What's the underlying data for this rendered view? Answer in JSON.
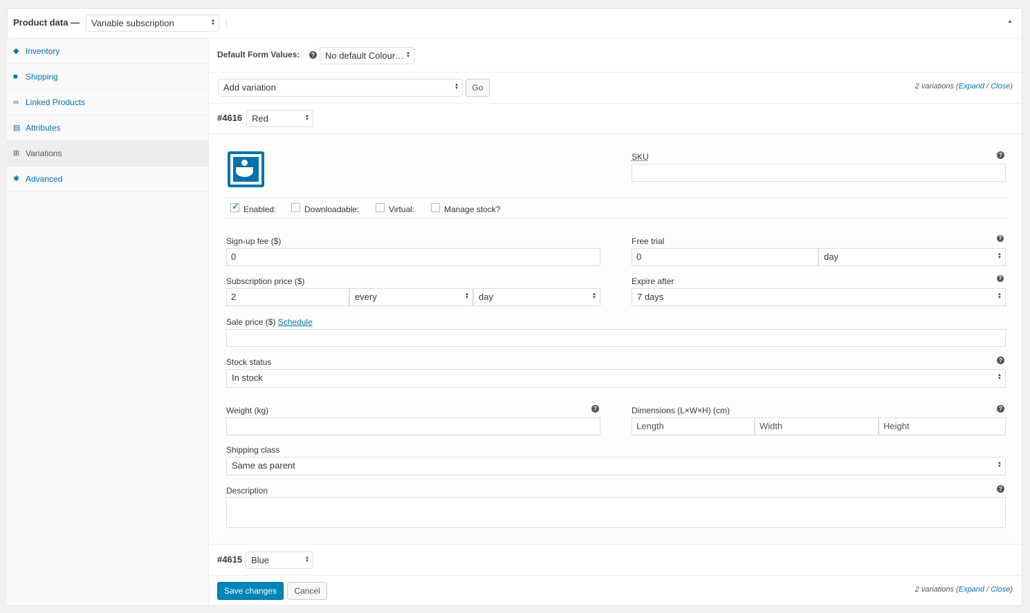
{
  "header": {
    "title": "Product data —",
    "product_type": "Variable subscription"
  },
  "sidebar": {
    "items": [
      {
        "label": "Inventory",
        "icon": "tag-icon"
      },
      {
        "label": "Shipping",
        "icon": "truck-icon"
      },
      {
        "label": "Linked Products",
        "icon": "link-icon"
      },
      {
        "label": "Attributes",
        "icon": "list-icon"
      },
      {
        "label": "Variations",
        "icon": "grid-icon",
        "active": true
      },
      {
        "label": "Advanced",
        "icon": "gear-icon"
      }
    ]
  },
  "defaults": {
    "label": "Default Form Values:",
    "value": "No default Colour…"
  },
  "toolbar": {
    "add_variation": "Add variation",
    "go": "Go",
    "count": "2 variations",
    "expand": "Expand",
    "close": "Close"
  },
  "variation1": {
    "id": "#4616",
    "attr": "Red",
    "sku_label": "SKU",
    "sku": "",
    "enabled": "Enabled:",
    "downloadable": "Downloadable:",
    "virtual": "Virtual:",
    "manage_stock": "Manage stock?",
    "signup_label": "Sign-up fee ($)",
    "signup": "0",
    "trial_label": "Free trial",
    "trial": "0",
    "trial_period": "day",
    "sub_price_label": "Subscription price ($)",
    "sub_price": "2",
    "interval": "every",
    "period": "day",
    "expire_label": "Expire after",
    "expire": "7 days",
    "sale_label": "Sale price ($)",
    "schedule": "Schedule",
    "stock_label": "Stock status",
    "stock": "In stock",
    "weight_label": "Weight (kg)",
    "dim_label": "Dimensions (L×W×H) (cm)",
    "length": "Length",
    "width": "Width",
    "height": "Height",
    "ship_label": "Shipping class",
    "ship": "Same as parent",
    "desc_label": "Description"
  },
  "variation2": {
    "id": "#4615",
    "attr": "Blue"
  },
  "footer": {
    "save": "Save changes",
    "cancel": "Cancel"
  },
  "colors": {
    "accent": "#0073aa",
    "button": "#0085ba"
  }
}
